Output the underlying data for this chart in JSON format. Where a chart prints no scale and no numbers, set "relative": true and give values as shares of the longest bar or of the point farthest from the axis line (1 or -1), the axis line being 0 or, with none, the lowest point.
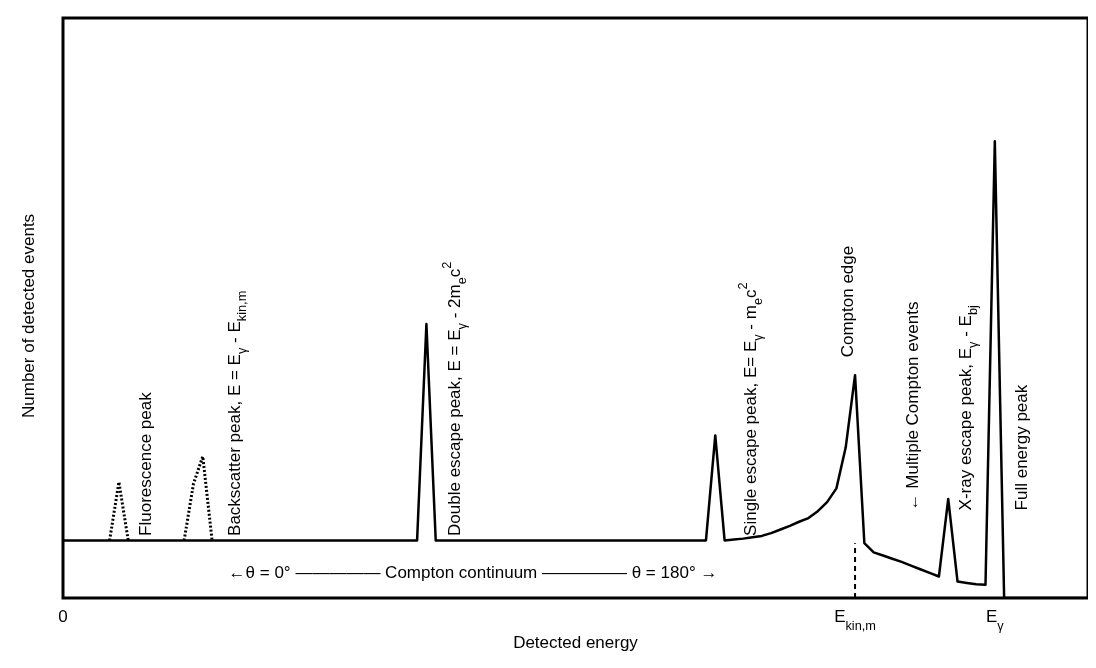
{
  "chart_data": {
    "type": "line",
    "relative": true,
    "xlabel": "Detected energy",
    "ylabel": "Number of detected events",
    "categories": [
      "0",
      null,
      null,
      null,
      null,
      null,
      null,
      null,
      null,
      null,
      null,
      null,
      null,
      null,
      null,
      null,
      null,
      null,
      null,
      null,
      null,
      null,
      null,
      null,
      null,
      null,
      null,
      null,
      null,
      null,
      null,
      null,
      null,
      null,
      null,
      null,
      null,
      null,
      null,
      null,
      null,
      null,
      null,
      null,
      null,
      null,
      null,
      null,
      null,
      null,
      null,
      null,
      null,
      null,
      null,
      null,
      null,
      null,
      null,
      null,
      null,
      null,
      null,
      null,
      null,
      null,
      null,
      null,
      null,
      null,
      null,
      null,
      null,
      null,
      null,
      null,
      null,
      null,
      null,
      null,
      null,
      null,
      null,
      null,
      null,
      "E$_{kin,m}$",
      null,
      null,
      null,
      null,
      null,
      null,
      null,
      null,
      null,
      null,
      null,
      null,
      null,
      null,
      "E$_{γ}$",
      null,
      null,
      null,
      null,
      null,
      null,
      null,
      null,
      null,
      null
    ],
    "marker": "none",
    "series": [
      {
        "color": "#000000",
        "line_style": "solid",
        "values": [
          0.126,
          0.126,
          0.126,
          0.126,
          0.126,
          0.126,
          0.126,
          0.126,
          0.126,
          0.126,
          0.126,
          0.126,
          0.126,
          0.126,
          0.126,
          0.126,
          0.126,
          0.126,
          0.126,
          0.126,
          0.126,
          0.126,
          0.126,
          0.126,
          0.126,
          0.126,
          0.126,
          0.126,
          0.126,
          0.126,
          0.126,
          0.126,
          0.126,
          0.126,
          0.126,
          0.126,
          0.126,
          0.126,
          0.126,
          0.6,
          0.126,
          0.126,
          0.126,
          0.126,
          0.126,
          0.126,
          0.126,
          0.126,
          0.126,
          0.126,
          0.126,
          0.126,
          0.126,
          0.126,
          0.126,
          0.126,
          0.126,
          0.126,
          0.126,
          0.126,
          0.126,
          0.126,
          0.126,
          0.126,
          0.126,
          0.126,
          0.126,
          0.126,
          0.126,
          0.126,
          0.356,
          0.126,
          0.128,
          0.13,
          0.133,
          0.136,
          0.142,
          0.15,
          0.158,
          0.167,
          0.175,
          0.19,
          0.21,
          0.24,
          0.33,
          0.488,
          0.12,
          0.1,
          0.093,
          0.086,
          0.079,
          0.071,
          0.063,
          0.055,
          0.047,
          0.217,
          0.036,
          0.033,
          0.03,
          0.029,
          1,
          0,
          0,
          0,
          0,
          0,
          0,
          0,
          0,
          0,
          0
        ]
      },
      {
        "color": "#000000",
        "line_style": "dotted",
        "values": [
          null,
          null,
          null,
          null,
          null,
          0.126,
          0.254,
          0.126,
          null,
          null,
          null,
          null,
          null,
          null,
          null,
          null,
          null,
          null,
          null,
          null,
          null,
          null,
          null,
          null,
          null,
          null,
          null,
          null,
          null,
          null,
          null,
          null,
          null,
          null,
          null,
          null,
          null,
          null,
          null,
          null,
          null,
          null,
          null,
          null,
          null,
          null,
          null,
          null,
          null,
          null,
          null,
          null,
          null,
          null,
          null,
          null,
          null,
          null,
          null,
          null,
          null,
          null,
          null,
          null,
          null,
          null,
          null,
          null,
          null,
          null,
          null,
          null,
          null,
          null,
          null,
          null,
          null,
          null,
          null,
          null,
          null,
          null,
          null,
          null,
          null,
          null,
          null,
          null,
          null,
          null,
          null,
          null,
          null,
          null,
          null,
          null,
          null,
          null,
          null,
          null,
          null,
          null,
          null,
          null,
          null,
          null,
          null,
          null,
          null,
          null,
          null
        ]
      },
      {
        "color": "#000000",
        "line_style": "dotted",
        "values": [
          null,
          null,
          null,
          null,
          null,
          null,
          null,
          null,
          null,
          null,
          null,
          null,
          null,
          0.126,
          0.25,
          0.31,
          0.126,
          null,
          null,
          null,
          null,
          null,
          null,
          null,
          null,
          null,
          null,
          null,
          null,
          null,
          null,
          null,
          null,
          null,
          null,
          null,
          null,
          null,
          null,
          null,
          null,
          null,
          null,
          null,
          null,
          null,
          null,
          null,
          null,
          null,
          null,
          null,
          null,
          null,
          null,
          null,
          null,
          null,
          null,
          null,
          null,
          null,
          null,
          null,
          null,
          null,
          null,
          null,
          null,
          null,
          null,
          null,
          null,
          null,
          null,
          null,
          null,
          null,
          null,
          null,
          null,
          null,
          null,
          null,
          null,
          null,
          null,
          null,
          null,
          null,
          null,
          null,
          null,
          null,
          null,
          null,
          null,
          null,
          null,
          null,
          null,
          null,
          null,
          null,
          null,
          null,
          null,
          null,
          null,
          null,
          null
        ]
      }
    ],
    "ref_lines": [
      {
        "axis": "x",
        "value": "E$_{kin,m}$",
        "line_style": "dashed",
        "color": "#000000"
      }
    ],
    "annotations": [
      "Fluorescence peak",
      "Backscatter peak, E = E$_{γ}$ - E$_{kin,m}$",
      "Double escape peak, E = E$_{γ}$ - 2m$_{e}$c$^{2}$",
      "Single escape peak, E= E$_{γ}$ - m$_{e}$c$^{2}$",
      "Compton edge",
      "← Multiple Compton events",
      "X-ray escape peak,  E$_{γ}$ - E$_{bj}$",
      "Full energy peak",
      "←θ = 0° ————— Compton continuum ————— θ = 180° →"
    ]
  }
}
